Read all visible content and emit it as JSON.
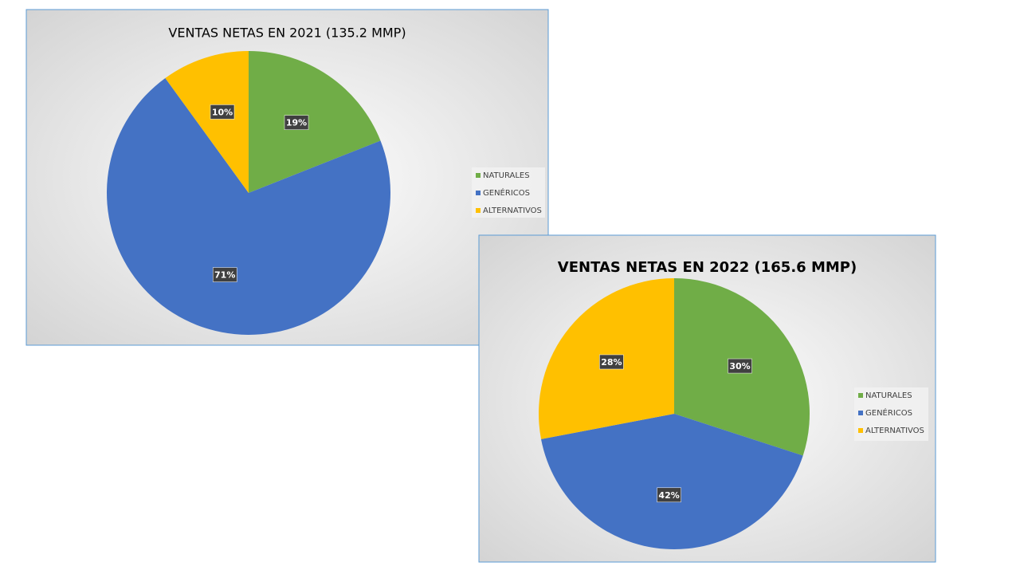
{
  "chart_data": [
    {
      "type": "pie",
      "title": "VENTAS NETAS EN 2021 (135.2 MMP)",
      "categories": [
        "NATURALES",
        "GENÉRICOS",
        "ALTERNATIVOS"
      ],
      "series": [
        {
          "values": [
            19,
            71,
            10
          ],
          "value_labels": [
            "19%",
            "71%",
            "10%"
          ],
          "colors": [
            "#70ad47",
            "#4472c4",
            "#ffc000"
          ]
        }
      ],
      "legend": "right"
    },
    {
      "type": "pie",
      "title": "VENTAS NETAS EN 2022 (165.6 MMP)",
      "categories": [
        "NATURALES",
        "GENÉRICOS",
        "ALTERNATIVOS"
      ],
      "series": [
        {
          "values": [
            30,
            42,
            28
          ],
          "value_labels": [
            "30%",
            "42%",
            "28%"
          ],
          "colors": [
            "#70ad47",
            "#4472c4",
            "#ffc000"
          ]
        }
      ],
      "legend": "right"
    }
  ]
}
